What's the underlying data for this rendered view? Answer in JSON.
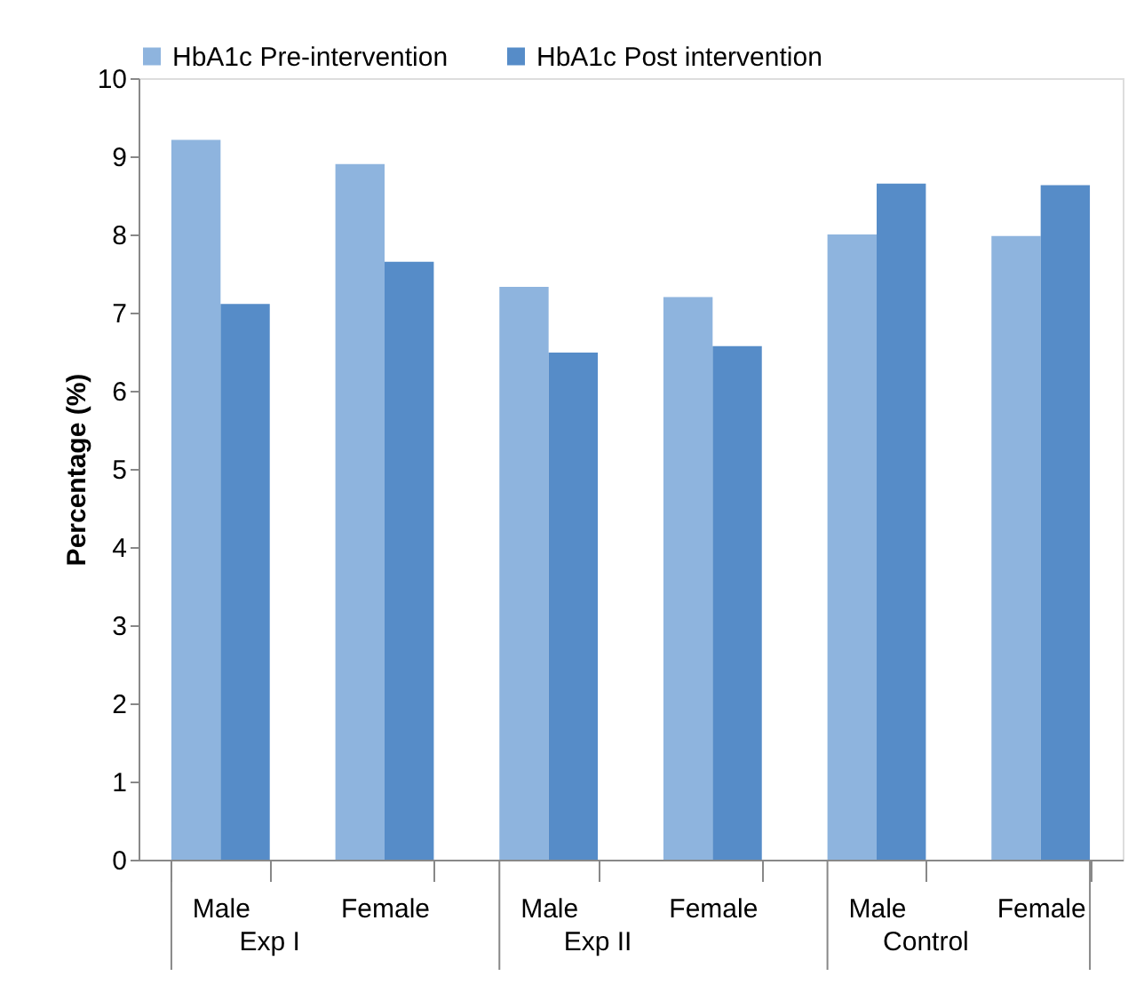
{
  "chart_data": {
    "type": "bar",
    "ylabel": "Percentage (%)",
    "categories": [
      "Male",
      "Female",
      "Male",
      "Female",
      "Male",
      "Female"
    ],
    "annotations": [
      "Exp I",
      "Exp II",
      "Control"
    ],
    "series": [
      {
        "name": "HbA1c Pre-intervention",
        "color": "#8eb4de",
        "values": [
          9.21,
          8.9,
          7.33,
          7.2,
          8.0,
          7.98
        ]
      },
      {
        "name": "HbA1c Post intervention",
        "color": "#568cc8",
        "values": [
          7.11,
          7.65,
          6.49,
          6.57,
          8.65,
          8.63
        ]
      }
    ],
    "ylim": [
      0,
      10
    ],
    "yticks": [
      0,
      1,
      2,
      3,
      4,
      5,
      6,
      7,
      8,
      9,
      10
    ],
    "grid": false,
    "legend": "top"
  }
}
